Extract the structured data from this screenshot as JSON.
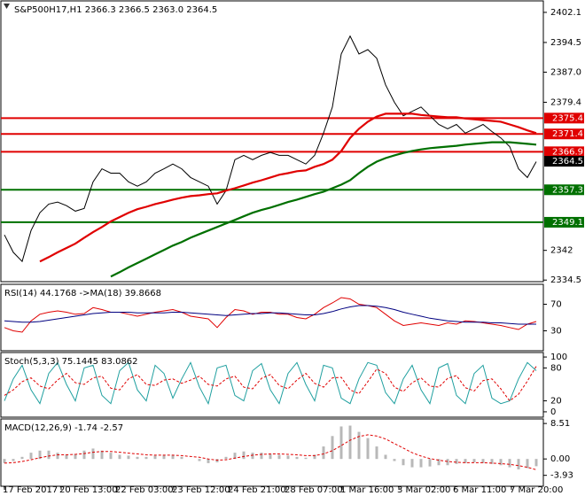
{
  "chart_data": [
    {
      "type": "line",
      "title": "S&P500H17,H1  2366.3 2366.5 2363.0 2364.5",
      "xlim": [
        0,
        60
      ],
      "xticks": [
        {
          "value": 0,
          "label": "17 Feb 2017"
        },
        {
          "value": 6.4,
          "label": "20 Feb 13:00"
        },
        {
          "value": 12.7,
          "label": "22 Feb 03:00"
        },
        {
          "value": 19.1,
          "label": "23 Feb 12:00"
        },
        {
          "value": 25.4,
          "label": "24 Feb 21:00"
        },
        {
          "value": 31.8,
          "label": "28 Feb 07:00"
        },
        {
          "value": 38.1,
          "label": "1 Mar 16:00"
        },
        {
          "value": 44.5,
          "label": "3 Mar 02:00"
        },
        {
          "value": 50.8,
          "label": "6 Mar 11:00"
        },
        {
          "value": 57.2,
          "label": "7 Mar 20:00"
        }
      ],
      "ylim": [
        2334.1,
        2405.0
      ],
      "yticks": [
        2402.1,
        2394.5,
        {
          "value": 2387,
          "label": "2387.0"
        },
        2379.4,
        2342,
        2334.5
      ],
      "series": [
        {
          "style": "line",
          "color": "#000000",
          "values": [
            2345.9,
            2341.5,
            2339.2,
            2347.0,
            2351.5,
            2353.7,
            2354.2,
            2353.3,
            2351.9,
            2352.6,
            2359.3,
            2362.6,
            2361.5,
            2361.5,
            2359.3,
            2358.2,
            2359.3,
            2361.5,
            2362.6,
            2363.8,
            2362.6,
            2360.4,
            2359.3,
            2358.2,
            2353.7,
            2357.1,
            2364.9,
            2366.0,
            2364.9,
            2366.0,
            2366.7,
            2366.0,
            2366.0,
            2364.9,
            2363.8,
            2366.0,
            2371.6,
            2378.2,
            2391.6,
            2396.1,
            2391.6,
            2392.7,
            2390.5,
            2383.8,
            2379.4,
            2376.0,
            2377.1,
            2378.2,
            2376.0,
            2373.8,
            2372.7,
            2373.8,
            2371.6,
            2372.7,
            2373.8,
            2372.0,
            2370.4,
            2368.2,
            2362.6,
            2360.4,
            2364.4
          ]
        },
        {
          "style": "thick",
          "color": "#e00000",
          "values": [
            null,
            null,
            null,
            null,
            2339.2,
            2340.3,
            2341.5,
            2342.6,
            2343.7,
            2345.2,
            2346.6,
            2347.9,
            2349.3,
            2350.4,
            2351.5,
            2352.4,
            2353.0,
            2353.7,
            2354.2,
            2354.8,
            2355.3,
            2355.7,
            2355.9,
            2356.2,
            2356.4,
            2357.1,
            2357.7,
            2358.4,
            2359.1,
            2359.7,
            2360.4,
            2361.1,
            2361.5,
            2362.0,
            2362.2,
            2363.1,
            2363.8,
            2364.9,
            2367.1,
            2370.4,
            2372.7,
            2374.5,
            2375.8,
            2376.5,
            2376.5,
            2376.5,
            2376.5,
            2376.2,
            2376.0,
            2375.8,
            2375.6,
            2375.6,
            2375.3,
            2375.1,
            2374.9,
            2374.7,
            2374.5,
            2373.8,
            2373.1,
            2372.3,
            2371.6
          ]
        },
        {
          "style": "thick",
          "color": "#007000",
          "values": [
            null,
            null,
            null,
            null,
            null,
            null,
            null,
            null,
            null,
            null,
            null,
            null,
            2335.4,
            2336.5,
            2337.7,
            2338.8,
            2339.9,
            2341.0,
            2342.1,
            2343.2,
            2344.1,
            2345.2,
            2346.1,
            2347.0,
            2347.9,
            2348.8,
            2349.7,
            2350.6,
            2351.5,
            2352.2,
            2352.8,
            2353.5,
            2354.2,
            2354.8,
            2355.5,
            2356.2,
            2356.8,
            2357.7,
            2358.6,
            2359.7,
            2361.5,
            2363.1,
            2364.4,
            2365.3,
            2366.0,
            2366.6,
            2367.1,
            2367.5,
            2367.8,
            2368.0,
            2368.2,
            2368.4,
            2368.7,
            2368.9,
            2369.1,
            2369.3,
            2369.3,
            2369.3,
            2369.1,
            2368.9,
            2368.7
          ]
        }
      ],
      "levels": [
        {
          "value": 2375.4,
          "color": "#e00000"
        },
        {
          "value": 2371.4,
          "color": "#e00000"
        },
        {
          "value": 2366.9,
          "color": "#e00000"
        },
        {
          "value": 2357.3,
          "color": "#007000"
        },
        {
          "value": 2349.1,
          "color": "#007000"
        }
      ],
      "last": 2364.5
    },
    {
      "type": "line",
      "title": "RSI(14) 44.1768  ->MA(18) 39.8668",
      "ylim": [
        0,
        100
      ],
      "yticks": [
        70,
        30
      ],
      "series": [
        {
          "style": "line",
          "color": "#e00000",
          "values": [
            35,
            30,
            28,
            45,
            55,
            58,
            60,
            58,
            55,
            56,
            65,
            62,
            58,
            58,
            55,
            52,
            55,
            58,
            60,
            62,
            58,
            52,
            50,
            48,
            35,
            50,
            62,
            60,
            55,
            58,
            58,
            55,
            55,
            50,
            48,
            55,
            65,
            72,
            80,
            78,
            70,
            68,
            65,
            55,
            45,
            38,
            40,
            42,
            40,
            38,
            42,
            40,
            45,
            44,
            42,
            40,
            38,
            35,
            32,
            40,
            44
          ]
        },
        {
          "style": "line",
          "color": "#000080",
          "values": [
            45,
            44,
            43,
            43,
            44,
            46,
            48,
            50,
            52,
            54,
            56,
            57,
            58,
            58,
            58,
            57,
            57,
            57,
            57,
            58,
            58,
            57,
            56,
            55,
            54,
            53,
            54,
            55,
            56,
            56,
            57,
            57,
            56,
            55,
            54,
            54,
            56,
            59,
            63,
            66,
            68,
            68,
            67,
            65,
            62,
            58,
            55,
            52,
            49,
            47,
            45,
            44,
            43,
            43,
            43,
            42,
            42,
            41,
            40,
            40,
            40
          ]
        }
      ]
    },
    {
      "type": "line",
      "title": "Stoch(5,3,3) 75.1445 83.0862",
      "ylim": [
        -9.8,
        108.2
      ],
      "yticks": [
        100,
        80,
        20,
        0
      ],
      "series": [
        {
          "style": "line",
          "color": "#20a0a0",
          "values": [
            20,
            60,
            85,
            40,
            15,
            70,
            90,
            50,
            20,
            80,
            85,
            30,
            15,
            75,
            90,
            40,
            20,
            85,
            70,
            25,
            60,
            90,
            45,
            15,
            80,
            85,
            30,
            20,
            75,
            88,
            40,
            15,
            70,
            90,
            50,
            20,
            85,
            80,
            25,
            15,
            60,
            90,
            85,
            35,
            15,
            60,
            85,
            40,
            15,
            80,
            88,
            30,
            15,
            70,
            85,
            25,
            15,
            20,
            60,
            90,
            75
          ]
        },
        {
          "style": "dash",
          "color": "#e00000",
          "values": [
            30,
            40,
            55,
            62,
            47,
            42,
            58,
            70,
            53,
            50,
            62,
            65,
            43,
            40,
            60,
            68,
            50,
            48,
            58,
            60,
            52,
            58,
            65,
            50,
            47,
            60,
            65,
            45,
            42,
            61,
            68,
            48,
            42,
            58,
            70,
            52,
            45,
            62,
            63,
            40,
            33,
            55,
            78,
            70,
            45,
            37,
            53,
            62,
            47,
            45,
            61,
            66,
            44,
            38,
            57,
            60,
            42,
            20,
            32,
            56,
            83
          ]
        }
      ]
    },
    {
      "type": "bar",
      "title": "MACD(12,26,9) -1.74 -2.57",
      "ylim": [
        -6.55,
        9.6
      ],
      "yticks": [
        8.51,
        {
          "value": 0,
          "label": "0.00"
        },
        -3.93
      ],
      "series": [
        {
          "style": "bar",
          "color": "#b8b8b8",
          "values": [
            -1,
            -0.5,
            0.5,
            1.5,
            2,
            2,
            1.5,
            1,
            1.2,
            2,
            2.5,
            2,
            1.5,
            1,
            0.8,
            0.5,
            0.5,
            0.8,
            1,
            1,
            0.5,
            0,
            -0.5,
            -1,
            -0.8,
            0.5,
            1.5,
            1.8,
            1.5,
            1.5,
            1.2,
            1,
            0.8,
            0.5,
            0.3,
            1,
            3,
            5.5,
            7.8,
            8,
            6.5,
            5,
            3,
            1,
            -0.5,
            -1.5,
            -2,
            -2,
            -1.8,
            -1.5,
            -1.5,
            -1.2,
            -1,
            -0.8,
            -1,
            -1.2,
            -1.5,
            -2,
            -2.5,
            -2.2,
            -1.74
          ]
        },
        {
          "style": "dash",
          "color": "#e00000",
          "values": [
            -1,
            -0.9,
            -0.6,
            -0.2,
            0.3,
            0.7,
            1,
            1,
            1.1,
            1.3,
            1.6,
            1.8,
            1.8,
            1.6,
            1.4,
            1.2,
            1,
            0.9,
            0.9,
            0.9,
            0.8,
            0.6,
            0.4,
            0,
            -0.3,
            -0.2,
            0.2,
            0.6,
            0.9,
            1.1,
            1.2,
            1.2,
            1.1,
            1,
            0.8,
            0.8,
            1.2,
            2,
            3.2,
            4.5,
            5.4,
            5.8,
            5.5,
            4.8,
            3.7,
            2.6,
            1.5,
            0.7,
            0.1,
            -0.3,
            -0.6,
            -0.8,
            -0.9,
            -0.9,
            -0.9,
            -1,
            -1.1,
            -1.3,
            -1.6,
            -2,
            -2.57
          ]
        }
      ]
    }
  ]
}
